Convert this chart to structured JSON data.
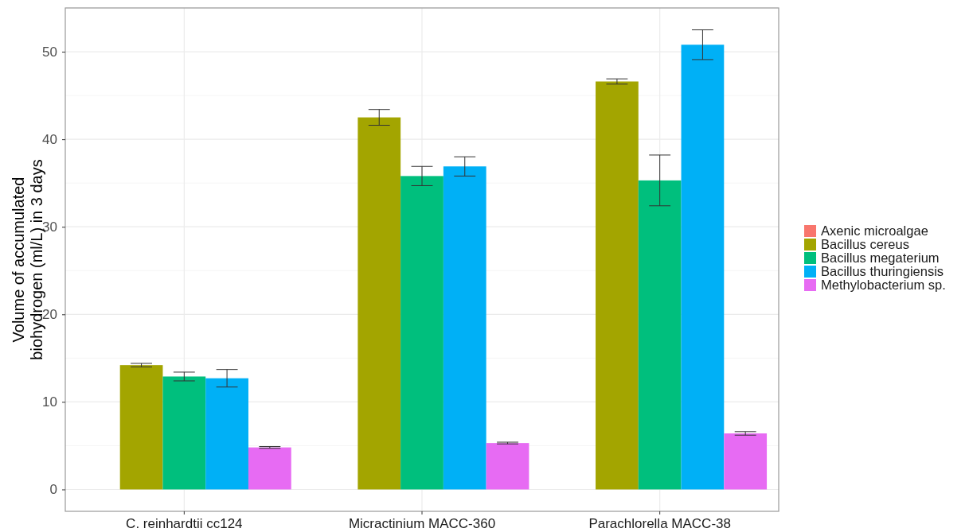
{
  "chart_data": {
    "type": "bar",
    "ylabel": "Volume of accumulated\nbiohydrogen (ml/L) in 3 days",
    "categories": [
      "C. reinhardtii cc124",
      "Micractinium MACC-360",
      "Parachlorella MACC-38"
    ],
    "series": [
      {
        "name": "Axenic microalgae",
        "color": "#f8766d",
        "values": [
          0,
          0,
          0
        ]
      },
      {
        "name": "Bacillus cereus",
        "color": "#a3a500",
        "values": [
          14.2,
          42.5,
          46.6
        ],
        "errors": [
          0.2,
          0.9,
          0.3
        ]
      },
      {
        "name": "Bacillus megaterium",
        "color": "#00bf7d",
        "values": [
          12.9,
          35.8,
          35.3
        ],
        "errors": [
          0.5,
          1.1,
          2.9
        ]
      },
      {
        "name": "Bacillus thuringiensis",
        "color": "#00b0f6",
        "values": [
          12.7,
          36.9,
          50.8
        ],
        "errors": [
          1.0,
          1.1,
          1.7
        ]
      },
      {
        "name": "Methylobacterium sp.",
        "color": "#e76bf3",
        "values": [
          4.8,
          5.3,
          6.4
        ],
        "errors": [
          0.1,
          0.1,
          0.2
        ]
      }
    ],
    "ylim": [
      -2.5,
      55
    ],
    "yticks": [
      0,
      10,
      20,
      30,
      40,
      50
    ],
    "grid": true,
    "legend": "right"
  }
}
